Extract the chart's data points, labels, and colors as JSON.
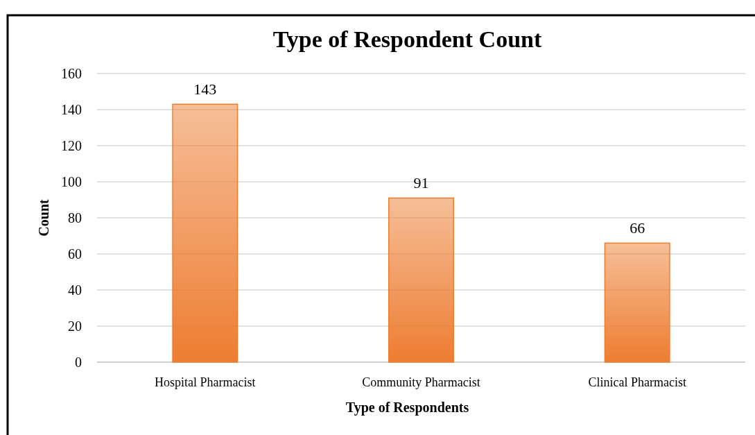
{
  "chart_data": {
    "type": "bar",
    "title": "Type of Respondent Count",
    "xlabel": "Type of Respondents",
    "ylabel": "Count",
    "categories": [
      "Hospital Pharmacist",
      "Community Pharmacist",
      "Clinical Pharmacist"
    ],
    "series": [
      {
        "color": "#ed7d31",
        "values": [
          143,
          91,
          66
        ]
      }
    ],
    "ylim": [
      0,
      160
    ],
    "yticks": [
      0,
      20,
      40,
      60,
      80,
      100,
      120,
      140,
      160
    ],
    "grid": "y",
    "data_labels": true
  }
}
